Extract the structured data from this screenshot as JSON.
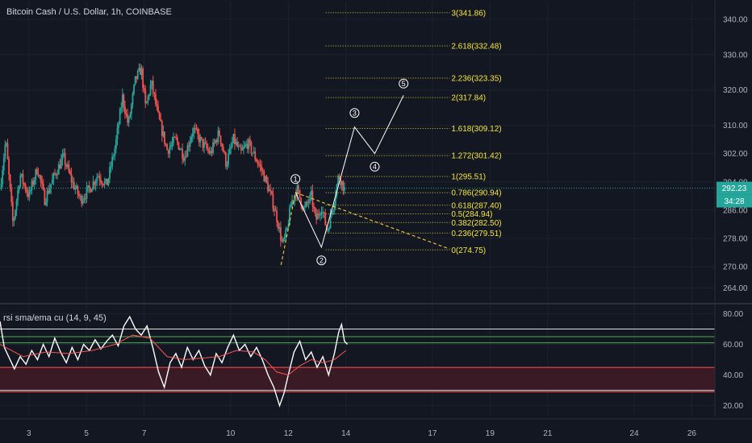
{
  "colors": {
    "background": "#131722",
    "grid": "#1e222d",
    "up_candle": "#26a69a",
    "down_candle": "#ef5350",
    "fib": "#d4c931",
    "fib_text": "#f5e642",
    "dashed_trend": "#e8c13a",
    "price_line": "#26a69a",
    "rsi_line": "#ffffff",
    "rsi_ema": "#ff5252",
    "rsi_band": "#3a1a24",
    "price_badge": "#26a69a",
    "text": "#b2b5be"
  },
  "header": {
    "title": "Bitcoin Cash / U.S. Dollar, 1h, COINBASE"
  },
  "chart_data": [
    {
      "type": "candlestick",
      "title": "Bitcoin Cash / U.S. Dollar, 1h, COINBASE",
      "ylim": [
        260,
        345
      ],
      "yticks": [
        264,
        270,
        278,
        286,
        294,
        302,
        310,
        320,
        330,
        340
      ],
      "ytick_labels": [
        "264.00",
        "270.00",
        "278.00",
        "286.00",
        "294.00",
        "302.00",
        "310.00",
        "320.00",
        "330.00",
        "340.00"
      ],
      "last_price": 292.23,
      "last_price_label": "292.23",
      "countdown_label": "34:28",
      "xlim": [
        2,
        26.8
      ],
      "xticks": [
        3,
        5,
        7,
        10,
        12,
        14,
        17,
        19,
        21,
        24,
        26
      ],
      "xtick_labels": [
        "3",
        "5",
        "7",
        "10",
        "12",
        "14",
        "17",
        "19",
        "21",
        "24",
        "26"
      ],
      "price_path": [
        [
          2.0,
          292
        ],
        [
          2.2,
          306
        ],
        [
          2.45,
          282
        ],
        [
          2.7,
          296
        ],
        [
          3.0,
          290
        ],
        [
          3.3,
          298
        ],
        [
          3.55,
          289
        ],
        [
          3.9,
          296
        ],
        [
          4.2,
          301
        ],
        [
          4.5,
          294
        ],
        [
          4.8,
          289
        ],
        [
          5.1,
          292
        ],
        [
          5.4,
          296
        ],
        [
          5.7,
          293
        ],
        [
          6.0,
          304
        ],
        [
          6.25,
          318
        ],
        [
          6.45,
          310
        ],
        [
          6.7,
          323
        ],
        [
          6.9,
          326
        ],
        [
          7.05,
          315
        ],
        [
          7.25,
          322
        ],
        [
          7.5,
          312
        ],
        [
          7.8,
          303
        ],
        [
          8.1,
          306
        ],
        [
          8.4,
          301
        ],
        [
          8.7,
          309
        ],
        [
          9.0,
          305
        ],
        [
          9.3,
          302
        ],
        [
          9.6,
          308
        ],
        [
          9.85,
          299
        ],
        [
          10.1,
          306
        ],
        [
          10.35,
          302
        ],
        [
          10.6,
          305
        ],
        [
          10.85,
          301
        ],
        [
          11.1,
          297
        ],
        [
          11.4,
          290
        ],
        [
          11.6,
          284
        ],
        [
          11.8,
          276
        ],
        [
          11.95,
          280
        ],
        [
          12.1,
          288
        ],
        [
          12.3,
          292
        ],
        [
          12.55,
          286
        ],
        [
          12.8,
          290
        ],
        [
          12.95,
          283
        ],
        [
          13.15,
          287
        ],
        [
          13.35,
          280
        ],
        [
          13.55,
          287
        ],
        [
          13.75,
          296
        ],
        [
          13.95,
          292
        ]
      ],
      "fib_levels": [
        {
          "ratio": "0",
          "label": "0(274.75)",
          "price": 274.75
        },
        {
          "ratio": "0.236",
          "label": "0.236(279.51)",
          "price": 279.51
        },
        {
          "ratio": "0.382",
          "label": "0.382(282.50)",
          "price": 282.5
        },
        {
          "ratio": "0.5",
          "label": "0.5(284.94)",
          "price": 284.94
        },
        {
          "ratio": "0.618",
          "label": "0.618(287.40)",
          "price": 287.4
        },
        {
          "ratio": "0.786",
          "label": "0.786(290.94)",
          "price": 290.94
        },
        {
          "ratio": "1",
          "label": "1(295.51)",
          "price": 295.51
        },
        {
          "ratio": "1.272",
          "label": "1.272(301.42)",
          "price": 301.42
        },
        {
          "ratio": "1.618",
          "label": "1.618(309.12)",
          "price": 309.12
        },
        {
          "ratio": "2",
          "label": "2(317.84)",
          "price": 317.84
        },
        {
          "ratio": "2.236",
          "label": "2.236(323.35)",
          "price": 323.35
        },
        {
          "ratio": "2.618",
          "label": "2.618(332.48)",
          "price": 332.48
        },
        {
          "ratio": "3",
          "label": "3(341.86)",
          "price": 341.86
        }
      ],
      "fib_x_range": [
        13.3,
        17.6
      ],
      "wave_path": [
        [
          12.25,
          291
        ],
        [
          13.15,
          275.5
        ],
        [
          14.3,
          309.5
        ],
        [
          15.0,
          302
        ],
        [
          16.0,
          318.5
        ]
      ],
      "wave_labels": [
        {
          "label": "1",
          "x": 12.25,
          "price": 294.8
        },
        {
          "label": "2",
          "x": 13.15,
          "price": 271.8
        },
        {
          "label": "3",
          "x": 14.3,
          "price": 313.5
        },
        {
          "label": "4",
          "x": 15.0,
          "price": 298.3
        },
        {
          "label": "5",
          "x": 16.0,
          "price": 321.8
        }
      ],
      "dashed_lines": [
        [
          [
            11.75,
            270.5
          ],
          [
            12.25,
            291
          ]
        ],
        [
          [
            12.25,
            291
          ],
          [
            17.6,
            275
          ]
        ]
      ]
    },
    {
      "type": "line",
      "title": "rsi sma/ema cu (14, 9, 45)",
      "ylim": [
        13,
        86
      ],
      "yticks": [
        20,
        40,
        60,
        80
      ],
      "ytick_labels": [
        "20.00",
        "40.00",
        "60.00",
        "80.00"
      ],
      "levels": [
        {
          "value": 70,
          "color": "#e0e0e0"
        },
        {
          "value": 65,
          "color": "#4caf50"
        },
        {
          "value": 61,
          "color": "#4caf50"
        },
        {
          "value": 45,
          "color": "#ff5252"
        },
        {
          "value": 30,
          "color": "#e0e0e0"
        },
        {
          "value": 29,
          "color": "#ff5252"
        }
      ],
      "band": [
        29,
        45
      ],
      "series": [
        {
          "values": [
            [
              2.0,
              75
            ],
            [
              2.15,
              58
            ],
            [
              2.3,
              52
            ],
            [
              2.5,
              44
            ],
            [
              2.7,
              52
            ],
            [
              2.9,
              47
            ],
            [
              3.1,
              56
            ],
            [
              3.3,
              50
            ],
            [
              3.5,
              60
            ],
            [
              3.7,
              52
            ],
            [
              3.9,
              64
            ],
            [
              4.1,
              55
            ],
            [
              4.3,
              48
            ],
            [
              4.5,
              58
            ],
            [
              4.7,
              50
            ],
            [
              4.9,
              60
            ],
            [
              5.1,
              56
            ],
            [
              5.3,
              63
            ],
            [
              5.5,
              57
            ],
            [
              5.7,
              62
            ],
            [
              5.9,
              66
            ],
            [
              6.1,
              59
            ],
            [
              6.3,
              72
            ],
            [
              6.5,
              78
            ],
            [
              6.7,
              70
            ],
            [
              6.9,
              66
            ],
            [
              7.1,
              72
            ],
            [
              7.3,
              58
            ],
            [
              7.5,
              42
            ],
            [
              7.7,
              32
            ],
            [
              7.9,
              48
            ],
            [
              8.1,
              54
            ],
            [
              8.3,
              45
            ],
            [
              8.5,
              58
            ],
            [
              8.7,
              50
            ],
            [
              8.9,
              56
            ],
            [
              9.1,
              46
            ],
            [
              9.3,
              40
            ],
            [
              9.5,
              54
            ],
            [
              9.7,
              48
            ],
            [
              9.9,
              58
            ],
            [
              10.1,
              66
            ],
            [
              10.3,
              56
            ],
            [
              10.5,
              60
            ],
            [
              10.7,
              52
            ],
            [
              10.9,
              58
            ],
            [
              11.1,
              50
            ],
            [
              11.3,
              40
            ],
            [
              11.5,
              32
            ],
            [
              11.7,
              20
            ],
            [
              11.85,
              28
            ],
            [
              12.0,
              40
            ],
            [
              12.2,
              55
            ],
            [
              12.4,
              62
            ],
            [
              12.6,
              50
            ],
            [
              12.8,
              55
            ],
            [
              13.0,
              45
            ],
            [
              13.2,
              52
            ],
            [
              13.4,
              40
            ],
            [
              13.6,
              54
            ],
            [
              13.75,
              68
            ],
            [
              13.85,
              73
            ],
            [
              13.95,
              62
            ],
            [
              14.05,
              60
            ]
          ]
        },
        {
          "values": [
            [
              2.0,
              60
            ],
            [
              2.8,
              52
            ],
            [
              3.6,
              55
            ],
            [
              4.4,
              54
            ],
            [
              5.2,
              56
            ],
            [
              6.0,
              60
            ],
            [
              6.6,
              66
            ],
            [
              7.2,
              64
            ],
            [
              7.8,
              52
            ],
            [
              8.4,
              50
            ],
            [
              9.0,
              51
            ],
            [
              9.6,
              52
            ],
            [
              10.2,
              56
            ],
            [
              10.8,
              55
            ],
            [
              11.2,
              50
            ],
            [
              11.6,
              42
            ],
            [
              12.0,
              40
            ],
            [
              12.4,
              46
            ],
            [
              12.8,
              50
            ],
            [
              13.2,
              48
            ],
            [
              13.6,
              50
            ],
            [
              14.0,
              56
            ]
          ]
        }
      ]
    }
  ]
}
